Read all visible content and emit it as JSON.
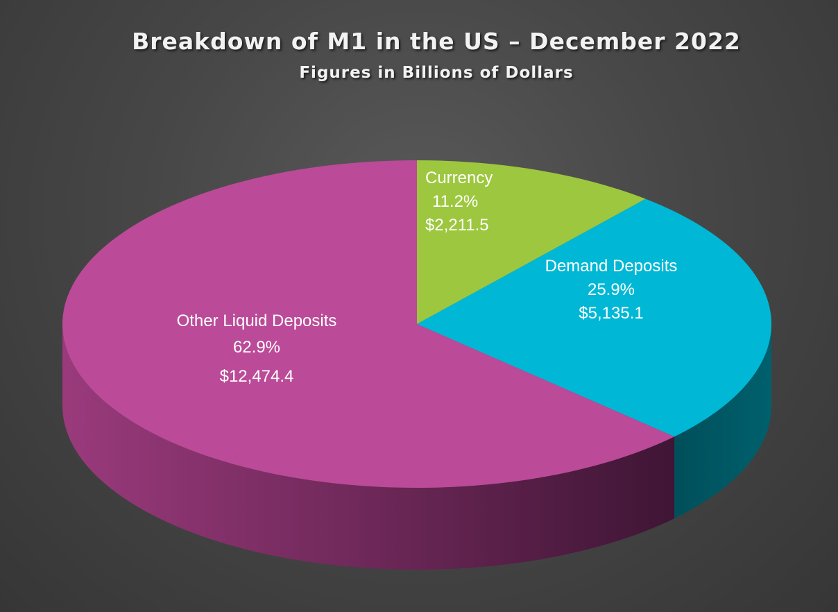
{
  "title": "Breakdown of M1 in the US – December 2022",
  "subtitle": "Figures in Billions of Dollars",
  "colors": {
    "background": "#474747",
    "currency": "#9dc73e",
    "demand_deposits": "#00b8d6",
    "other_liquid_deposits": "#bb4a98"
  },
  "chart_data": {
    "type": "pie",
    "style": "3d",
    "title": "Breakdown of M1 in the US – December 2022",
    "subtitle": "Figures in Billions of Dollars",
    "legend": "none",
    "slices": [
      {
        "label": "Currency",
        "value": 2211.5,
        "percent": 11.2,
        "percent_label": "11.2%",
        "value_label": "$2,211.5",
        "color": "#9dc73e"
      },
      {
        "label": "Demand Deposits",
        "value": 5135.1,
        "percent": 25.9,
        "percent_label": "25.9%",
        "value_label": "$5,135.1",
        "color": "#00b8d6"
      },
      {
        "label": "Other Liquid Deposits",
        "value": 12474.4,
        "percent": 62.9,
        "percent_label": "62.9%",
        "value_label": "$12,474.4",
        "color": "#bb4a98"
      }
    ]
  }
}
